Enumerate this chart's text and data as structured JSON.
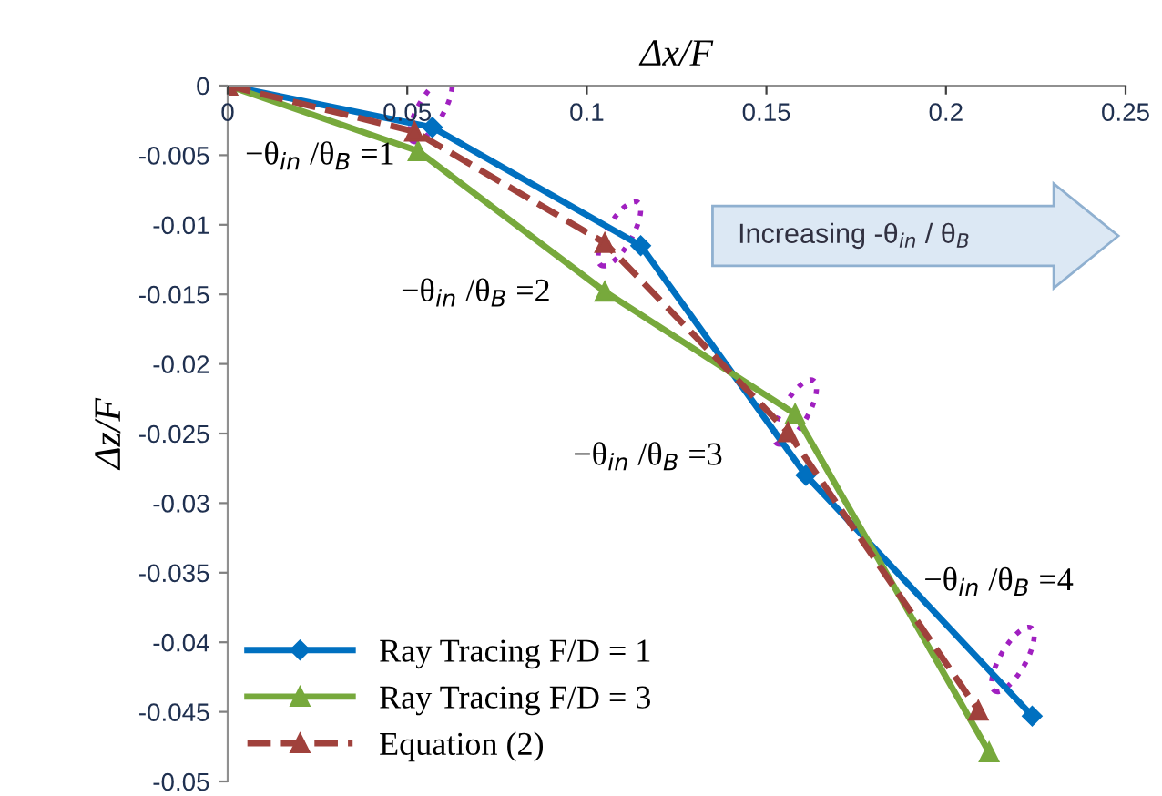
{
  "chart_data": {
    "type": "line",
    "xlabel": "Δx/F",
    "ylabel": "Δz/F",
    "xlim": [
      0,
      0.25
    ],
    "xticks": [
      0,
      0.05,
      0.1,
      0.15,
      0.2,
      0.25
    ],
    "ylim": [
      -0.05,
      0
    ],
    "yticks": [
      -0.05,
      -0.045,
      -0.04,
      -0.035,
      -0.03,
      -0.025,
      -0.02,
      -0.015,
      -0.01,
      -0.005,
      0
    ],
    "grid": false,
    "legend": "bottom left",
    "series": [
      {
        "name": "Ray Tracing F/D = 1",
        "color": "#0070c0",
        "marker": "diamond",
        "line_style": "solid",
        "x": [
          0,
          0.057,
          0.115,
          0.161,
          0.224
        ],
        "values": [
          0,
          -0.003,
          -0.0115,
          -0.028,
          -0.0453
        ]
      },
      {
        "name": "Ray Tracing F/D = 3",
        "color": "#77a93c",
        "marker": "triangle",
        "line_style": "solid",
        "x": [
          0,
          0.053,
          0.105,
          0.158,
          0.212
        ],
        "values": [
          0,
          -0.0047,
          -0.0148,
          -0.0236,
          -0.0479
        ]
      },
      {
        "name": "Equation (2)",
        "color": "#a0413c",
        "marker": "triangle",
        "line_style": "dashed",
        "x": [
          0,
          0.052,
          0.105,
          0.156,
          0.209
        ],
        "values": [
          0,
          -0.0033,
          -0.0113,
          -0.0249,
          -0.0449
        ]
      }
    ],
    "annotations": [
      "−θ$_{in}$ /θ$_{B}$ =1",
      "−θ$_{in}$ /θ$_{B}$ =2",
      "−θ$_{in}$ /θ$_{B}$ =3",
      "−θ$_{in}$ /θ$_{B}$ =4",
      "Increasing -θ$_{in}$ / θ$_{B}$"
    ]
  }
}
